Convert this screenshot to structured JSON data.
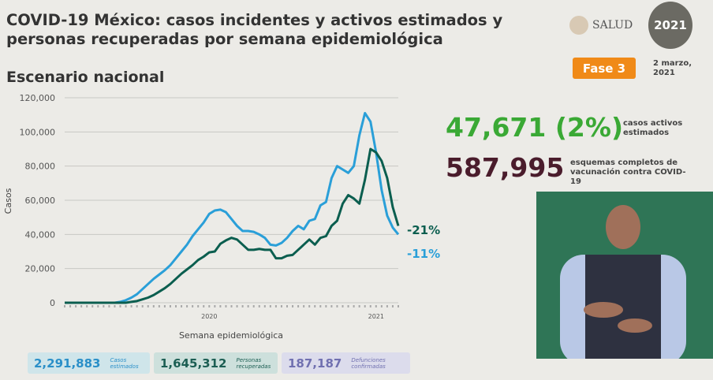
{
  "header": {
    "title": "COVID-19 México: casos incidentes y activos estimados y personas recuperadas por semana epidemiológica",
    "subtitle": "Escenario nacional",
    "logo": "SALUD",
    "logo_year": "2021",
    "phase": "Fase 3",
    "date": "2 marzo, 2021"
  },
  "highlights": {
    "active_value": "47,671 (2%)",
    "active_label": "casos activos estimados",
    "vaccination_value": "587,995",
    "vaccination_label": "esquemas completos de vacunación contra COVID-19"
  },
  "summary": [
    {
      "value": "2,291,883",
      "label": "Casos estimados"
    },
    {
      "value": "1,645,312",
      "label": "Personas recuperadas"
    },
    {
      "value": "187,187",
      "label": "Defunciones confirmadas"
    }
  ],
  "colors": {
    "blue": "#2a9fd8",
    "green": "#0b5e4f"
  },
  "chart_data": {
    "type": "line",
    "xlabel": "Semana epidemiológica",
    "ylabel": "Casos",
    "ylim": [
      0,
      120000
    ],
    "yticks": [
      "0",
      "20,000",
      "40,000",
      "60,000",
      "80,000",
      "100,000",
      "120,000"
    ],
    "year_labels": [
      {
        "label": "2020",
        "week_index": 26
      },
      {
        "label": "2021",
        "week_index": 56
      }
    ],
    "series": [
      {
        "name": "blue",
        "end_label": "-11%",
        "values": [
          0,
          0,
          0,
          0,
          0,
          0,
          0,
          0,
          0,
          0,
          500,
          1500,
          3000,
          5000,
          8000,
          11000,
          14000,
          16500,
          19000,
          22000,
          26000,
          30000,
          34000,
          39000,
          43000,
          47000,
          52000,
          54000,
          54500,
          53000,
          49000,
          45000,
          42000,
          42000,
          41500,
          40000,
          38000,
          34000,
          33500,
          35000,
          38000,
          42000,
          45000,
          43000,
          48000,
          49000,
          57000,
          59000,
          73000,
          80000,
          78000,
          76000,
          80000,
          98000,
          111000,
          106000,
          88000,
          66000,
          51000,
          44000,
          40000
        ]
      },
      {
        "name": "green",
        "end_label": "-21%",
        "values": [
          0,
          0,
          0,
          0,
          0,
          0,
          0,
          0,
          0,
          0,
          0,
          0,
          500,
          1000,
          2000,
          3000,
          4500,
          6500,
          8500,
          11000,
          14000,
          17000,
          19500,
          22000,
          25000,
          27000,
          29500,
          30000,
          34500,
          36500,
          38000,
          37000,
          34000,
          31000,
          31000,
          31500,
          31000,
          31000,
          26000,
          26000,
          27500,
          28000,
          31000,
          34000,
          37000,
          34000,
          38000,
          39000,
          45000,
          48000,
          58000,
          63000,
          61000,
          58000,
          72000,
          90000,
          88000,
          83000,
          73000,
          56000,
          45000
        ]
      }
    ]
  }
}
